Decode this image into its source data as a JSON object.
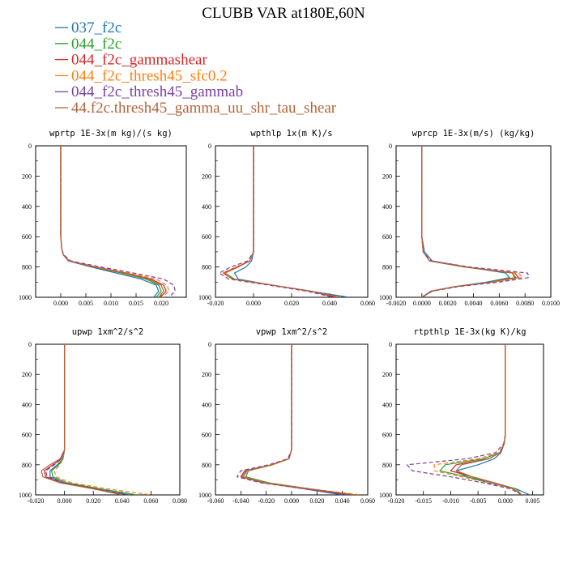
{
  "figure": {
    "title": "CLUBB VAR at180E,60N"
  },
  "legend": [
    {
      "label": "037_f2c",
      "color": "#1f77b4",
      "dash": "solid"
    },
    {
      "label": "044_f2c",
      "color": "#2ca02c",
      "dash": "solid"
    },
    {
      "label": "044_f2c_gammashear",
      "color": "#d62728",
      "dash": "solid"
    },
    {
      "label": "044_f2c_thresh45_sfc0.2",
      "color": "#ff7f0e",
      "dash": "dash"
    },
    {
      "label": "044_f2c_thresh45_gammab",
      "color": "#7b3fa0",
      "dash": "dash"
    },
    {
      "label": "44.f2c.thresh45_gamma_uu_shr_tau_shear",
      "color": "#b5643a",
      "dash": "solid"
    }
  ],
  "chart_data": [
    {
      "type": "line",
      "title": "wprtp  1E-3x(m kg)/(s kg)",
      "xlim": [
        -0.005,
        0.025
      ],
      "xticks": [
        "0.000",
        "0.005",
        "0.010",
        "0.015",
        "0.020"
      ],
      "xtick_values": [
        0,
        0.005,
        0.01,
        0.015,
        0.02
      ],
      "ylim": [
        0,
        1000
      ],
      "yticks": [
        "0",
        "200",
        "400",
        "600",
        "800",
        "1000"
      ],
      "y_inverted": true,
      "y": [
        0,
        200,
        400,
        600,
        680,
        720,
        760,
        800,
        840,
        880,
        920,
        960,
        1000
      ],
      "series": [
        {
          "values": [
            0,
            0,
            0,
            0,
            0.0002,
            0.0005,
            0.0015,
            0.006,
            0.011,
            0.016,
            0.019,
            0.0195,
            0.0185
          ]
        },
        {
          "values": [
            0,
            0,
            0,
            0,
            0.0002,
            0.0005,
            0.0016,
            0.0065,
            0.012,
            0.017,
            0.0195,
            0.02,
            0.019
          ]
        },
        {
          "values": [
            0,
            0,
            0,
            0,
            0.0002,
            0.0005,
            0.0017,
            0.007,
            0.013,
            0.018,
            0.0205,
            0.021,
            0.0198
          ]
        },
        {
          "values": [
            0,
            0,
            0,
            0,
            0.0002,
            0.0005,
            0.0017,
            0.0072,
            0.0135,
            0.019,
            0.0212,
            0.0215,
            0.0203
          ]
        },
        {
          "values": [
            0,
            0,
            0,
            0,
            0.0002,
            0.0006,
            0.002,
            0.008,
            0.0145,
            0.0205,
            0.0225,
            0.0228,
            0.0215
          ]
        },
        {
          "values": [
            0,
            0,
            0,
            0,
            0.0002,
            0.0005,
            0.0016,
            0.0066,
            0.0125,
            0.0175,
            0.02,
            0.0205,
            0.0195
          ]
        }
      ]
    },
    {
      "type": "line",
      "title": "wpthlp  1x(m K)/s",
      "xlim": [
        -0.02,
        0.06
      ],
      "xticks": [
        "-0.020",
        "0.000",
        "0.020",
        "0.040",
        "0.060"
      ],
      "xtick_values": [
        -0.02,
        0,
        0.02,
        0.04,
        0.06
      ],
      "ylim": [
        0,
        1000
      ],
      "yticks": [
        "0",
        "200",
        "400",
        "600",
        "800",
        "1000"
      ],
      "y_inverted": true,
      "y": [
        0,
        200,
        400,
        600,
        700,
        760,
        800,
        840,
        880,
        920,
        960,
        1000
      ],
      "series": [
        {
          "values": [
            0,
            0,
            0,
            0,
            0,
            -0.001,
            -0.004,
            -0.01,
            -0.008,
            0.01,
            0.03,
            0.05
          ]
        },
        {
          "values": [
            0,
            0,
            0,
            0,
            0,
            -0.002,
            -0.008,
            -0.015,
            -0.01,
            0.01,
            0.03,
            0.044
          ]
        },
        {
          "values": [
            0,
            0,
            0,
            0,
            0,
            -0.002,
            -0.009,
            -0.016,
            -0.011,
            0.01,
            0.03,
            0.043
          ]
        },
        {
          "values": [
            0,
            0,
            0,
            0,
            0,
            -0.002,
            -0.009,
            -0.016,
            -0.011,
            0.01,
            0.03,
            0.045
          ]
        },
        {
          "values": [
            0,
            0,
            0,
            0,
            0,
            -0.003,
            -0.012,
            -0.018,
            -0.013,
            0.008,
            0.028,
            0.042
          ]
        },
        {
          "values": [
            0,
            0,
            0,
            0,
            0,
            -0.002,
            -0.008,
            -0.015,
            -0.011,
            0.01,
            0.03,
            0.046
          ]
        }
      ]
    },
    {
      "type": "line",
      "title": "wprcp  1E-3x(m/s) (kg/kg)",
      "xlim": [
        -0.002,
        0.01
      ],
      "xticks": [
        "-0.0020",
        "0.0000",
        "0.0020",
        "0.0040",
        "0.0060",
        "0.0080",
        "0.0100"
      ],
      "xtick_values": [
        -0.002,
        0,
        0.002,
        0.004,
        0.006,
        0.008,
        0.01
      ],
      "ylim": [
        0,
        1000
      ],
      "yticks": [
        "0",
        "200",
        "400",
        "600",
        "800",
        "1000"
      ],
      "y_inverted": true,
      "y": [
        0,
        200,
        400,
        600,
        700,
        760,
        800,
        840,
        870,
        900,
        930,
        960,
        1000
      ],
      "series": [
        {
          "values": [
            0,
            0,
            0,
            0,
            0.0002,
            0.0008,
            0.0035,
            0.0065,
            0.0068,
            0.005,
            0.0025,
            0.0008,
            0
          ]
        },
        {
          "values": [
            0,
            0,
            0,
            0,
            0.0001,
            0.0006,
            0.0033,
            0.007,
            0.0072,
            0.0052,
            0.0025,
            0.0007,
            0
          ]
        },
        {
          "values": [
            0,
            0,
            0,
            0,
            0.0001,
            0.0006,
            0.0034,
            0.0072,
            0.0075,
            0.0054,
            0.0026,
            0.0007,
            0
          ]
        },
        {
          "values": [
            0,
            0,
            0,
            0,
            0.0001,
            0.0006,
            0.0034,
            0.0075,
            0.0078,
            0.0056,
            0.0027,
            0.0007,
            0
          ]
        },
        {
          "values": [
            0,
            0,
            0,
            0,
            0.0001,
            0.0007,
            0.0037,
            0.0082,
            0.0083,
            0.006,
            0.0028,
            0.0008,
            0
          ]
        },
        {
          "values": [
            0,
            0,
            0,
            0,
            0.0001,
            0.0006,
            0.0033,
            0.007,
            0.0073,
            0.0053,
            0.0025,
            0.0007,
            0
          ]
        }
      ]
    },
    {
      "type": "line",
      "title": "upwp  1xm^2/s^2",
      "xlim": [
        -0.02,
        0.08
      ],
      "xticks": [
        "-0.020",
        "0.000",
        "0.020",
        "0.040",
        "0.060",
        "0.080"
      ],
      "xtick_values": [
        -0.02,
        0,
        0.02,
        0.04,
        0.06,
        0.08
      ],
      "ylim": [
        0,
        1000
      ],
      "yticks": [
        "0",
        "200",
        "400",
        "600",
        "800",
        "1000"
      ],
      "y_inverted": true,
      "y": [
        0,
        200,
        400,
        600,
        700,
        760,
        800,
        840,
        880,
        920,
        960,
        1000
      ],
      "series": [
        {
          "values": [
            0,
            0,
            0,
            0,
            0,
            -0.001,
            -0.005,
            -0.01,
            -0.01,
            0,
            0.02,
            0.045
          ]
        },
        {
          "values": [
            0,
            0,
            0,
            0,
            0,
            -0.001,
            -0.004,
            -0.009,
            -0.008,
            0.002,
            0.025,
            0.05
          ]
        },
        {
          "values": [
            0,
            0,
            0,
            0,
            0,
            -0.002,
            -0.008,
            -0.014,
            -0.013,
            -0.002,
            0.022,
            0.04
          ]
        },
        {
          "values": [
            0,
            0,
            0,
            0,
            0,
            -0.001,
            -0.003,
            -0.007,
            -0.006,
            0.005,
            0.03,
            0.06
          ]
        },
        {
          "values": [
            0,
            0,
            0,
            0,
            0,
            -0.002,
            -0.007,
            -0.013,
            -0.012,
            0,
            0.022,
            0.045
          ]
        },
        {
          "values": [
            0,
            0,
            0,
            0,
            0,
            -0.003,
            -0.01,
            -0.016,
            -0.015,
            -0.003,
            0.02,
            0.04
          ]
        }
      ]
    },
    {
      "type": "line",
      "title": "vpwp  1xm^2/s^2",
      "xlim": [
        -0.06,
        0.06
      ],
      "xticks": [
        "-0.060",
        "-0.040",
        "-0.020",
        "0.000",
        "0.020",
        "0.040",
        "0.060"
      ],
      "xtick_values": [
        -0.06,
        -0.04,
        -0.02,
        0,
        0.02,
        0.04,
        0.06
      ],
      "ylim": [
        0,
        1000
      ],
      "yticks": [
        "0",
        "200",
        "400",
        "600",
        "800",
        "1000"
      ],
      "y_inverted": true,
      "y": [
        0,
        200,
        400,
        600,
        700,
        760,
        800,
        840,
        880,
        920,
        960,
        1000
      ],
      "series": [
        {
          "values": [
            0,
            0,
            0,
            0,
            0,
            -0.002,
            -0.015,
            -0.035,
            -0.038,
            -0.02,
            0.01,
            0.04
          ]
        },
        {
          "values": [
            0,
            0,
            0,
            0,
            0,
            -0.002,
            -0.015,
            -0.034,
            -0.036,
            -0.018,
            0.015,
            0.05
          ]
        },
        {
          "values": [
            0,
            0,
            0,
            0,
            0,
            -0.002,
            -0.016,
            -0.037,
            -0.04,
            -0.022,
            0.012,
            0.045
          ]
        },
        {
          "values": [
            0,
            0,
            0,
            0,
            0,
            -0.002,
            -0.015,
            -0.035,
            -0.038,
            -0.02,
            0.015,
            0.055
          ]
        },
        {
          "values": [
            0,
            0,
            0,
            0,
            0,
            -0.003,
            -0.018,
            -0.04,
            -0.043,
            -0.024,
            0.01,
            0.045
          ]
        },
        {
          "values": [
            0,
            0,
            0,
            0,
            0,
            -0.002,
            -0.016,
            -0.036,
            -0.039,
            -0.021,
            0.014,
            0.05
          ]
        }
      ]
    },
    {
      "type": "line",
      "title": "rtpthlp  1E-3x(kg K)/kg",
      "xlim": [
        -0.02,
        0.007
      ],
      "xticks": [
        "-0.020",
        "-0.015",
        "-0.010",
        "-0.005",
        "0.000",
        "0.005"
      ],
      "xtick_values": [
        -0.02,
        -0.015,
        -0.01,
        -0.005,
        0,
        0.005
      ],
      "ylim": [
        0,
        1000
      ],
      "yticks": [
        "0",
        "200",
        "400",
        "600",
        "800",
        "1000"
      ],
      "y_inverted": true,
      "y": [
        0,
        200,
        400,
        600,
        660,
        720,
        760,
        800,
        840,
        880,
        920,
        960,
        1000
      ],
      "series": [
        {
          "values": [
            0,
            0,
            0,
            0,
            -0.0002,
            -0.0008,
            -0.002,
            -0.005,
            -0.009,
            -0.007,
            -0.003,
            0.002,
            0.0045
          ]
        },
        {
          "values": [
            0,
            0,
            0,
            0,
            -0.0002,
            -0.001,
            -0.004,
            -0.011,
            -0.012,
            -0.007,
            -0.002,
            0.002,
            0.003
          ]
        },
        {
          "values": [
            0,
            0,
            0,
            0,
            -0.0002,
            -0.001,
            -0.003,
            -0.009,
            -0.01,
            -0.006,
            -0.002,
            0.0015,
            0.003
          ]
        },
        {
          "values": [
            0,
            0,
            0,
            0,
            -0.0002,
            -0.0012,
            -0.005,
            -0.013,
            -0.013,
            -0.008,
            -0.003,
            0.0015,
            0.003
          ]
        },
        {
          "values": [
            0,
            0,
            0,
            0,
            -0.0003,
            -0.0018,
            -0.007,
            -0.018,
            -0.017,
            -0.01,
            -0.004,
            0.001,
            0.003
          ]
        },
        {
          "values": [
            0,
            0,
            0,
            0,
            -0.0002,
            -0.001,
            -0.003,
            -0.008,
            -0.009,
            -0.006,
            -0.002,
            0.0015,
            0.003
          ]
        }
      ]
    }
  ]
}
